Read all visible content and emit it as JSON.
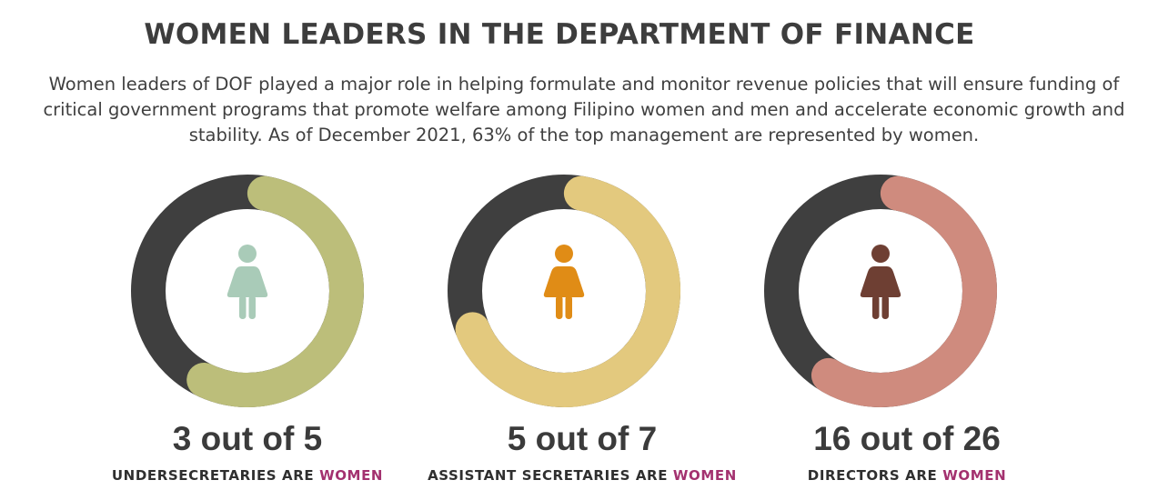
{
  "title": "WOMEN LEADERS IN THE DEPARTMENT OF FINANCE",
  "intro": "Women leaders of DOF played a major role in helping formulate and monitor revenue policies that will ensure funding of critical government programs that promote welfare among Filipino women and men and accelerate economic growth and stability. As of December 2021, 63% of the top management are represented by women.",
  "colors": {
    "dark_track": "#3f3f3f",
    "accent_text": "#a3316f"
  },
  "chart_data": [
    {
      "type": "donut",
      "women": 3,
      "total": 5,
      "value_label": "3 out of 5",
      "caption_prefix": "UNDERSECRETARIES ARE ",
      "caption_accent": "WOMEN",
      "arc_color": "#bcbe7a",
      "icon": "woman-icon",
      "icon_color": "#a9cbb8"
    },
    {
      "type": "donut",
      "women": 5,
      "total": 7,
      "value_label": "5 out of 7",
      "caption_prefix": "ASSISTANT SECRETARIES ARE ",
      "caption_accent": "WOMEN",
      "arc_color": "#e3c97e",
      "icon": "woman-icon",
      "icon_color": "#e08c16"
    },
    {
      "type": "donut",
      "women": 16,
      "total": 26,
      "value_label": "16 out of 26",
      "caption_prefix": "DIRECTORS ARE ",
      "caption_accent": "WOMEN",
      "arc_color": "#cf8b7e",
      "icon": "woman-icon",
      "icon_color": "#6e3f33"
    }
  ]
}
